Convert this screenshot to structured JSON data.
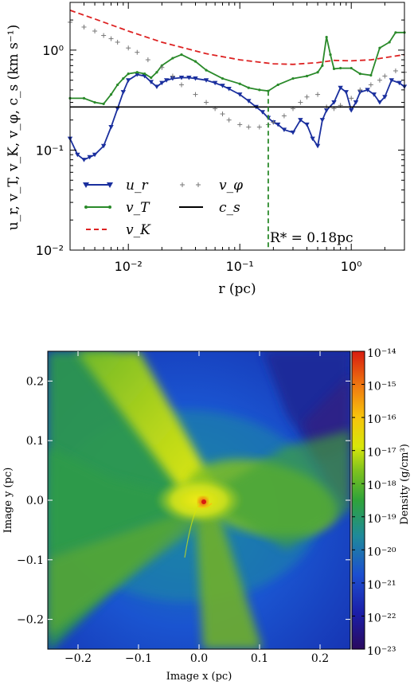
{
  "chart_data": [
    {
      "type": "line",
      "xscale": "log",
      "yscale": "log",
      "xlim": [
        0.003,
        3.0
      ],
      "ylim": [
        0.01,
        3.0
      ],
      "xticks": [
        "10⁻²",
        "10⁻¹",
        "10⁰"
      ],
      "xtick_values": [
        0.01,
        0.1,
        1
      ],
      "yticks": [
        "10⁻²",
        "10⁻¹",
        "10⁰"
      ],
      "ytick_values": [
        0.01,
        0.1,
        1
      ],
      "xlabel": "r (pc)",
      "ylabel": "u_r, v_T, v_K, v_φ, c_s (km s⁻¹)",
      "annotation": "R* = 0.18pc",
      "annotation_x": 0.18,
      "legend_placement": "lower-left",
      "series": [
        {
          "name": "u_r",
          "color": "#1a2f9e",
          "style": "solid-triangle",
          "x": [
            0.003,
            0.0035,
            0.004,
            0.0045,
            0.005,
            0.006,
            0.007,
            0.008,
            0.009,
            0.01,
            0.012,
            0.014,
            0.016,
            0.018,
            0.02,
            0.022,
            0.025,
            0.03,
            0.035,
            0.04,
            0.05,
            0.06,
            0.07,
            0.08,
            0.1,
            0.12,
            0.14,
            0.16,
            0.18,
            0.2,
            0.22,
            0.25,
            0.3,
            0.35,
            0.4,
            0.45,
            0.5,
            0.55,
            0.6,
            0.7,
            0.8,
            0.9,
            1.0,
            1.1,
            1.2,
            1.4,
            1.6,
            1.8,
            2.0,
            2.3,
            2.7,
            3.0
          ],
          "y": [
            0.13,
            0.09,
            0.08,
            0.085,
            0.09,
            0.11,
            0.17,
            0.26,
            0.38,
            0.5,
            0.57,
            0.55,
            0.48,
            0.43,
            0.47,
            0.5,
            0.52,
            0.53,
            0.53,
            0.52,
            0.5,
            0.47,
            0.44,
            0.41,
            0.36,
            0.31,
            0.27,
            0.24,
            0.21,
            0.19,
            0.18,
            0.16,
            0.15,
            0.2,
            0.18,
            0.13,
            0.11,
            0.2,
            0.25,
            0.3,
            0.42,
            0.38,
            0.25,
            0.3,
            0.38,
            0.4,
            0.36,
            0.3,
            0.34,
            0.5,
            0.47,
            0.43
          ]
        },
        {
          "name": "v_T",
          "color": "#2a8a2a",
          "style": "solid-dot",
          "x": [
            0.003,
            0.004,
            0.005,
            0.006,
            0.007,
            0.008,
            0.009,
            0.01,
            0.012,
            0.014,
            0.016,
            0.018,
            0.02,
            0.025,
            0.03,
            0.04,
            0.05,
            0.07,
            0.1,
            0.12,
            0.15,
            0.18,
            0.22,
            0.3,
            0.4,
            0.5,
            0.55,
            0.6,
            0.65,
            0.7,
            0.8,
            1.0,
            1.2,
            1.5,
            1.8,
            2.2,
            2.5,
            3.0
          ],
          "y": [
            0.33,
            0.33,
            0.3,
            0.29,
            0.36,
            0.45,
            0.52,
            0.58,
            0.6,
            0.58,
            0.53,
            0.6,
            0.7,
            0.83,
            0.9,
            0.77,
            0.63,
            0.52,
            0.46,
            0.42,
            0.4,
            0.39,
            0.45,
            0.52,
            0.55,
            0.6,
            0.7,
            1.35,
            0.9,
            0.65,
            0.66,
            0.66,
            0.58,
            0.56,
            1.05,
            1.2,
            1.5,
            1.5
          ]
        },
        {
          "name": "v_K",
          "color": "#dd2222",
          "style": "dashed",
          "x": [
            0.003,
            0.005,
            0.01,
            0.02,
            0.05,
            0.1,
            0.2,
            0.3,
            0.5,
            0.7,
            1.0,
            1.5,
            2.0,
            3.0
          ],
          "y": [
            2.5,
            2.05,
            1.55,
            1.2,
            0.92,
            0.8,
            0.73,
            0.72,
            0.75,
            0.79,
            0.78,
            0.8,
            0.84,
            0.9
          ]
        },
        {
          "name": "v_φ",
          "color": "#777777",
          "style": "plus",
          "x": [
            0.003,
            0.004,
            0.005,
            0.006,
            0.007,
            0.008,
            0.01,
            0.012,
            0.015,
            0.02,
            0.025,
            0.03,
            0.04,
            0.05,
            0.06,
            0.07,
            0.08,
            0.1,
            0.12,
            0.15,
            0.18,
            0.2,
            0.25,
            0.3,
            0.35,
            0.4,
            0.5,
            0.6,
            0.7,
            0.8,
            1.0,
            1.2,
            1.5,
            1.8,
            2.0,
            2.5,
            3.0
          ],
          "y": [
            1.9,
            1.7,
            1.55,
            1.4,
            1.3,
            1.2,
            1.05,
            0.95,
            0.8,
            0.67,
            0.55,
            0.45,
            0.36,
            0.3,
            0.26,
            0.23,
            0.2,
            0.18,
            0.17,
            0.17,
            0.18,
            0.19,
            0.22,
            0.26,
            0.3,
            0.34,
            0.36,
            0.27,
            0.26,
            0.28,
            0.33,
            0.4,
            0.45,
            0.5,
            0.55,
            0.62,
            0.6
          ]
        },
        {
          "name": "c_s",
          "color": "#000000",
          "style": "solid",
          "x": [
            0.003,
            3.0
          ],
          "y": [
            0.27,
            0.27
          ]
        }
      ]
    },
    {
      "type": "heatmap",
      "xlim": [
        -0.25,
        0.25
      ],
      "ylim": [
        -0.25,
        0.25
      ],
      "xticks": [
        "−0.2",
        "−0.1",
        "0.0",
        "0.1",
        "0.2"
      ],
      "xtick_values": [
        -0.2,
        -0.1,
        0.0,
        0.1,
        0.2
      ],
      "yticks": [
        "−0.2",
        "−0.1",
        "0.0",
        "0.1",
        "0.2"
      ],
      "ytick_values": [
        -0.2,
        -0.1,
        0.0,
        0.1,
        0.2
      ],
      "xlabel": "Image x  (pc)",
      "ylabel": "Image y  (pc)",
      "colorbar_label": "Density  (g/cm³)",
      "colorbar_scale": "log",
      "colorbar_range": [
        1e-23,
        1e-14
      ],
      "colorbar_ticks": [
        "10⁻¹⁴",
        "10⁻¹⁵",
        "10⁻¹⁶",
        "10⁻¹⁷",
        "10⁻¹⁸",
        "10⁻¹⁹",
        "10⁻²⁰",
        "10⁻²¹",
        "10⁻²²",
        "10⁻²³"
      ],
      "colorbar_tick_exponents": [
        -14,
        -15,
        -16,
        -17,
        -18,
        -19,
        -20,
        -21,
        -22,
        -23
      ],
      "colormap": [
        "#2a0a5e",
        "#1b1ea8",
        "#1c4fd0",
        "#1f8a9a",
        "#2fa33a",
        "#7fc21e",
        "#d8e60a",
        "#f7c40c",
        "#f07c10",
        "#d81c10"
      ]
    }
  ]
}
